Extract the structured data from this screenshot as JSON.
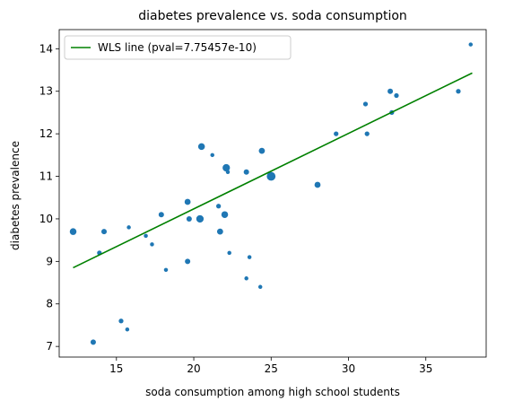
{
  "chart_data": {
    "type": "scatter",
    "title": "diabetes prevalence vs. soda consumption",
    "xlabel": "soda consumption among high school students",
    "ylabel": "diabetes prevalence",
    "xlim": [
      11.3,
      38.9
    ],
    "ylim": [
      6.75,
      14.45
    ],
    "xticks": [
      15,
      20,
      25,
      30,
      35
    ],
    "yticks": [
      7,
      8,
      9,
      10,
      11,
      12,
      13,
      14
    ],
    "grid": false,
    "legend_position": "top-left",
    "series": [
      {
        "name": "",
        "color": "#1f77b4",
        "points": [
          {
            "x": 12.2,
            "y": 9.7,
            "size": 5
          },
          {
            "x": 13.5,
            "y": 7.1,
            "size": 4
          },
          {
            "x": 13.9,
            "y": 9.2,
            "size": 3.5
          },
          {
            "x": 14.2,
            "y": 9.7,
            "size": 4
          },
          {
            "x": 15.3,
            "y": 7.6,
            "size": 3.5
          },
          {
            "x": 15.7,
            "y": 7.4,
            "size": 3
          },
          {
            "x": 15.8,
            "y": 9.8,
            "size": 3
          },
          {
            "x": 16.9,
            "y": 9.6,
            "size": 3
          },
          {
            "x": 17.3,
            "y": 9.4,
            "size": 3
          },
          {
            "x": 17.9,
            "y": 10.1,
            "size": 4
          },
          {
            "x": 18.2,
            "y": 8.8,
            "size": 3
          },
          {
            "x": 19.6,
            "y": 9.0,
            "size": 4
          },
          {
            "x": 19.6,
            "y": 10.4,
            "size": 4.5
          },
          {
            "x": 19.7,
            "y": 10.0,
            "size": 4
          },
          {
            "x": 20.4,
            "y": 10.0,
            "size": 5.5
          },
          {
            "x": 20.5,
            "y": 11.7,
            "size": 5
          },
          {
            "x": 21.2,
            "y": 11.5,
            "size": 3
          },
          {
            "x": 21.6,
            "y": 10.3,
            "size": 3.5
          },
          {
            "x": 21.7,
            "y": 9.7,
            "size": 4.5
          },
          {
            "x": 22.0,
            "y": 10.1,
            "size": 5
          },
          {
            "x": 22.1,
            "y": 11.2,
            "size": 5.5
          },
          {
            "x": 22.2,
            "y": 11.1,
            "size": 3
          },
          {
            "x": 22.3,
            "y": 9.2,
            "size": 3
          },
          {
            "x": 23.4,
            "y": 11.1,
            "size": 4
          },
          {
            "x": 23.4,
            "y": 8.6,
            "size": 3
          },
          {
            "x": 23.6,
            "y": 9.1,
            "size": 3
          },
          {
            "x": 24.3,
            "y": 8.4,
            "size": 3
          },
          {
            "x": 24.4,
            "y": 11.6,
            "size": 4.5
          },
          {
            "x": 25.0,
            "y": 11.0,
            "size": 6.5
          },
          {
            "x": 28.0,
            "y": 10.8,
            "size": 4.5
          },
          {
            "x": 29.2,
            "y": 12.0,
            "size": 3.5
          },
          {
            "x": 31.1,
            "y": 12.7,
            "size": 3.5
          },
          {
            "x": 31.2,
            "y": 12.0,
            "size": 3.5
          },
          {
            "x": 32.7,
            "y": 13.0,
            "size": 4
          },
          {
            "x": 32.8,
            "y": 12.5,
            "size": 3.5
          },
          {
            "x": 33.1,
            "y": 12.9,
            "size": 3.5
          },
          {
            "x": 37.1,
            "y": 13.0,
            "size": 3.5
          },
          {
            "x": 37.9,
            "y": 14.1,
            "size": 3
          }
        ]
      }
    ],
    "fit_line": {
      "name": "WLS line (pval=7.75457e-10)",
      "color": "#008000",
      "x": [
        12.2,
        38.0
      ],
      "y": [
        8.85,
        13.43
      ]
    }
  }
}
